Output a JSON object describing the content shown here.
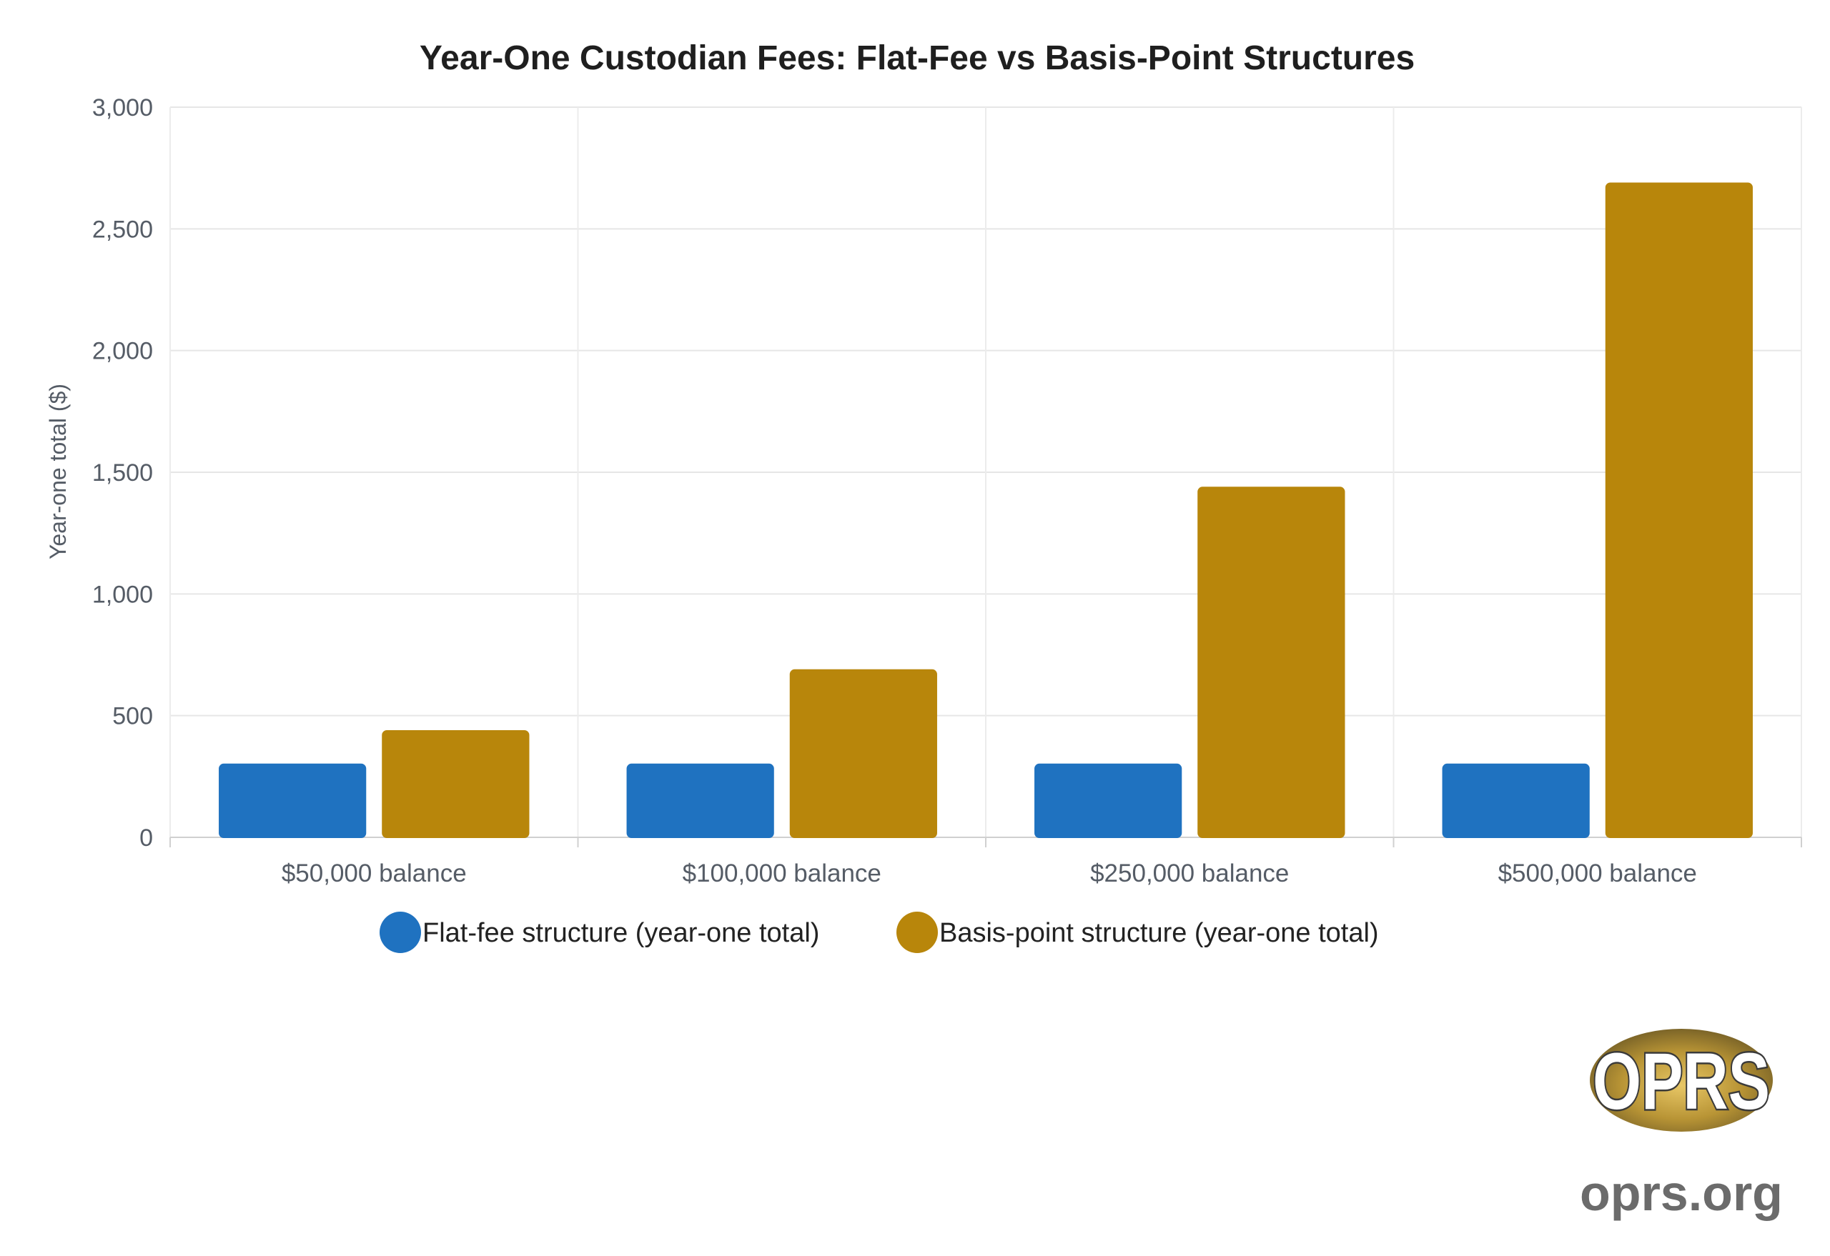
{
  "chart_data": {
    "type": "bar",
    "title": "Year-One Custodian Fees: Flat-Fee vs Basis-Point Structures",
    "xlabel": "",
    "ylabel": "Year-one total ($)",
    "categories": [
      "$50,000 balance",
      "$100,000 balance",
      "$250,000 balance",
      "$500,000 balance"
    ],
    "series": [
      {
        "name": "Flat-fee structure (year-one total)",
        "color": "#1f72c0",
        "values": [
          300,
          300,
          300,
          300
        ]
      },
      {
        "name": "Basis-point structure (year-one total)",
        "color": "#b8860b",
        "values": [
          437.5,
          687.5,
          1437.5,
          2687.5
        ]
      }
    ],
    "ylim": [
      0,
      3000
    ],
    "yticks": [
      0,
      500,
      1000,
      1500,
      2000,
      2500,
      3000
    ],
    "ytick_labels": [
      "0",
      "500",
      "1,000",
      "1,500",
      "2,000",
      "2,500",
      "3,000"
    ],
    "grid": true,
    "legend_position": "bottom"
  },
  "logo": {
    "text": "OPRS",
    "site": "oprs.org"
  }
}
